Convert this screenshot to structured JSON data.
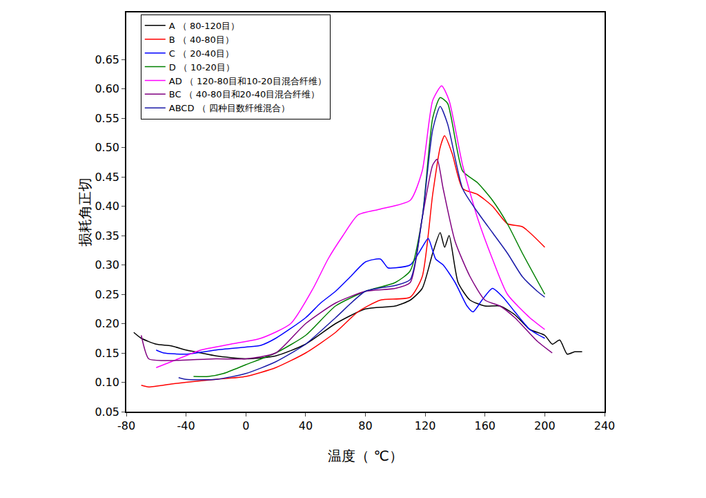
{
  "chart_data": {
    "type": "line",
    "x_label": "温度（ ℃）",
    "y_label": "损耗角正切",
    "xlim": [
      -80,
      240
    ],
    "xticks": [
      -80,
      -40,
      0,
      40,
      80,
      120,
      160,
      200,
      240
    ],
    "ylim": [
      0.05,
      0.73
    ],
    "yticks": [
      0.05,
      {
        "value": 0.1,
        "label": "0.10"
      },
      0.15,
      {
        "value": 0.2,
        "label": "0.20"
      },
      0.25,
      {
        "value": 0.3,
        "label": "0.30"
      },
      0.35,
      {
        "value": 0.4,
        "label": "0.40"
      },
      0.45,
      {
        "value": 0.5,
        "label": "0.50"
      },
      0.55,
      {
        "value": 0.6,
        "label": "0.60"
      },
      0.65
    ],
    "grid": false,
    "legend": "upper left",
    "series": [
      {
        "name": "A （ 80-120目）",
        "color": "#000000",
        "x": [
          -75,
          -70,
          -60,
          -50,
          -40,
          -30,
          -20,
          0,
          20,
          40,
          60,
          80,
          100,
          110,
          118,
          125,
          130,
          133,
          136,
          142,
          150,
          160,
          170,
          180,
          190,
          200,
          205,
          210,
          215,
          220,
          225
        ],
        "values": [
          0.185,
          0.175,
          0.165,
          0.162,
          0.155,
          0.15,
          0.145,
          0.14,
          0.145,
          0.165,
          0.2,
          0.225,
          0.23,
          0.24,
          0.26,
          0.32,
          0.355,
          0.33,
          0.35,
          0.27,
          0.24,
          0.23,
          0.23,
          0.215,
          0.19,
          0.18,
          0.165,
          0.172,
          0.148,
          0.152,
          0.152
        ]
      },
      {
        "name": "B （ 40-80目）",
        "color": "#ff0000",
        "x": [
          -70,
          -65,
          -50,
          -40,
          -20,
          0,
          20,
          40,
          60,
          75,
          90,
          110,
          118,
          125,
          130,
          133,
          138,
          145,
          155,
          165,
          175,
          185,
          200
        ],
        "values": [
          0.095,
          0.092,
          0.097,
          0.1,
          0.105,
          0.11,
          0.125,
          0.15,
          0.185,
          0.22,
          0.24,
          0.245,
          0.28,
          0.42,
          0.5,
          0.52,
          0.49,
          0.43,
          0.42,
          0.4,
          0.37,
          0.365,
          0.33
        ]
      },
      {
        "name": "C （ 20-40目）",
        "color": "#0000ff",
        "x": [
          -60,
          -55,
          -40,
          -20,
          0,
          10,
          20,
          40,
          50,
          60,
          70,
          80,
          90,
          95,
          100,
          110,
          118,
          122,
          127,
          132,
          140,
          148,
          152,
          158,
          165,
          172,
          180,
          190,
          200
        ],
        "values": [
          0.155,
          0.15,
          0.148,
          0.155,
          0.16,
          0.163,
          0.175,
          0.21,
          0.235,
          0.255,
          0.28,
          0.305,
          0.31,
          0.295,
          0.295,
          0.3,
          0.33,
          0.345,
          0.31,
          0.3,
          0.27,
          0.23,
          0.22,
          0.24,
          0.26,
          0.245,
          0.22,
          0.19,
          0.175
        ]
      },
      {
        "name": "D （ 10-20目）",
        "color": "#008000",
        "x": [
          -35,
          -25,
          -15,
          0,
          20,
          40,
          60,
          80,
          100,
          110,
          118,
          125,
          130,
          135,
          145,
          155,
          165,
          175,
          185,
          200
        ],
        "values": [
          0.11,
          0.11,
          0.115,
          0.13,
          0.15,
          0.18,
          0.23,
          0.255,
          0.27,
          0.29,
          0.38,
          0.55,
          0.585,
          0.575,
          0.46,
          0.44,
          0.41,
          0.37,
          0.32,
          0.25
        ]
      },
      {
        "name": "AD （ 120-80目和10-20目混合纤维）",
        "color": "#ff00ff",
        "x": [
          -60,
          -50,
          -30,
          -10,
          10,
          30,
          45,
          55,
          65,
          75,
          90,
          110,
          118,
          125,
          131,
          136,
          145,
          155,
          165,
          175,
          190,
          200
        ],
        "values": [
          0.125,
          0.135,
          0.155,
          0.165,
          0.175,
          0.2,
          0.26,
          0.31,
          0.35,
          0.385,
          0.395,
          0.41,
          0.46,
          0.58,
          0.605,
          0.58,
          0.47,
          0.38,
          0.31,
          0.25,
          0.21,
          0.19
        ]
      },
      {
        "name": "BC （ 40-80目和20-40目混合纤维）",
        "color": "#800080",
        "x": [
          -70,
          -65,
          -55,
          -40,
          -20,
          0,
          20,
          40,
          60,
          80,
          100,
          110,
          118,
          125,
          128,
          132,
          140,
          150,
          160,
          170,
          180,
          195,
          205
        ],
        "values": [
          0.18,
          0.14,
          0.137,
          0.138,
          0.14,
          0.14,
          0.15,
          0.2,
          0.235,
          0.255,
          0.26,
          0.27,
          0.38,
          0.47,
          0.48,
          0.43,
          0.34,
          0.28,
          0.24,
          0.23,
          0.21,
          0.17,
          0.15
        ]
      },
      {
        "name": "ABCD （ 四种目数纤维混合）",
        "color": "#1a1aa8",
        "x": [
          -45,
          -40,
          -20,
          0,
          20,
          40,
          60,
          80,
          100,
          110,
          118,
          125,
          130,
          135,
          145,
          155,
          165,
          175,
          185,
          195,
          200
        ],
        "values": [
          0.108,
          0.105,
          0.105,
          0.115,
          0.135,
          0.165,
          0.21,
          0.255,
          0.265,
          0.275,
          0.38,
          0.53,
          0.57,
          0.54,
          0.43,
          0.39,
          0.355,
          0.32,
          0.28,
          0.255,
          0.245
        ]
      }
    ]
  }
}
